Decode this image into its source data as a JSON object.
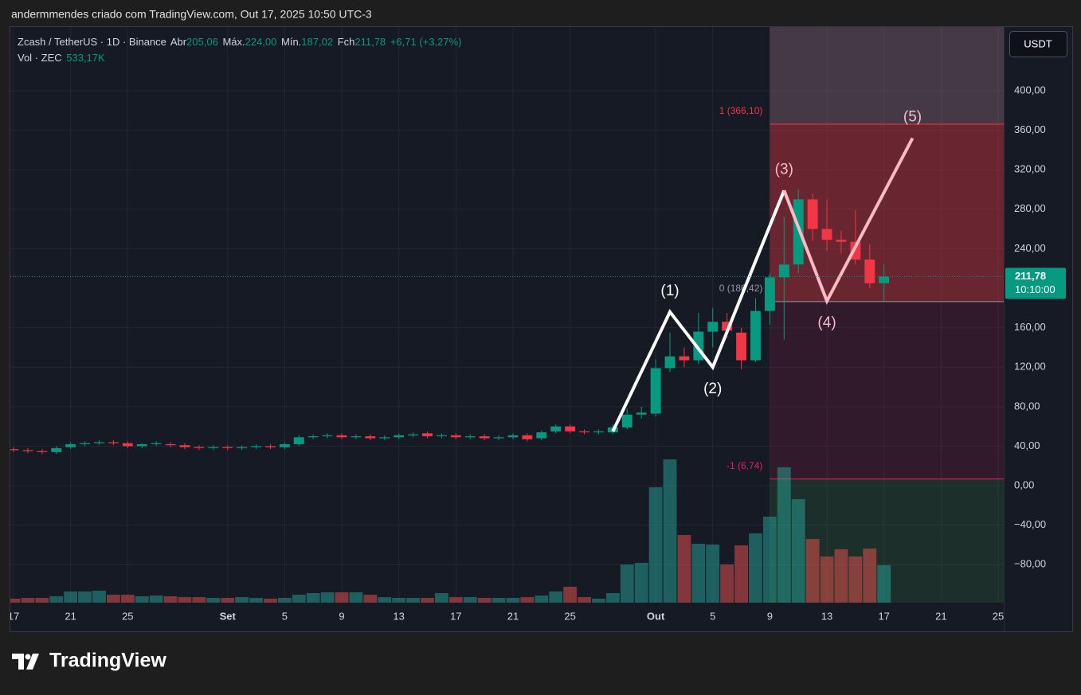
{
  "watermark": "andermmendes criado com TradingView.com, Out 17, 2025 10:50 UTC-3",
  "logo": "TradingView",
  "chart_data": {
    "type": "candlestick",
    "title": "Zcash / TetherUS · 1D · Binance",
    "legend": {
      "open_label": "Abr",
      "open": "205,06",
      "high_label": "Máx.",
      "high": "224,00",
      "low_label": "Mín.",
      "low": "187,02",
      "close_label": "Fch",
      "close": "211,78",
      "change": "+6,71 (+3,27%)",
      "volume_label": "Vol · ZEC",
      "volume": "533,17K"
    },
    "currency": "USDT",
    "x": [
      "08-17",
      "08-18",
      "08-19",
      "08-20",
      "08-21",
      "08-22",
      "08-23",
      "08-24",
      "08-25",
      "08-26",
      "08-27",
      "08-28",
      "08-29",
      "08-30",
      "08-31",
      "09-01",
      "09-02",
      "09-03",
      "09-04",
      "09-05",
      "09-06",
      "09-07",
      "09-08",
      "09-09",
      "09-10",
      "09-11",
      "09-12",
      "09-13",
      "09-14",
      "09-15",
      "09-16",
      "09-17",
      "09-18",
      "09-19",
      "09-20",
      "09-21",
      "09-22",
      "09-23",
      "09-24",
      "09-25",
      "09-26",
      "09-27",
      "09-28",
      "09-29",
      "09-30",
      "10-01",
      "10-02",
      "10-03",
      "10-04",
      "10-05",
      "10-06",
      "10-07",
      "10-08",
      "10-09",
      "10-10",
      "10-11",
      "10-12",
      "10-13",
      "10-14",
      "10-15",
      "10-16",
      "10-17"
    ],
    "open": [
      37,
      36,
      35,
      34,
      39,
      42,
      43,
      44,
      43,
      40,
      42,
      42,
      41,
      39,
      38,
      39,
      38,
      39,
      40,
      39,
      42,
      49,
      50,
      51,
      49,
      50,
      48,
      49,
      51,
      53,
      50,
      51,
      49,
      50,
      48,
      49,
      51,
      48,
      55,
      60,
      55,
      54,
      54,
      59,
      72,
      73,
      119,
      131,
      127,
      156,
      166,
      155,
      127,
      177,
      211,
      224,
      290,
      260,
      249,
      247,
      229,
      205.06
    ],
    "high": [
      39,
      38,
      37,
      40,
      44,
      45,
      46,
      46,
      45,
      43,
      45,
      44,
      43,
      41,
      41,
      41,
      41,
      42,
      42,
      44,
      51,
      52,
      53,
      53,
      52,
      52,
      51,
      53,
      54,
      55,
      53,
      53,
      52,
      52,
      51,
      53,
      53,
      56,
      62,
      62,
      57,
      57,
      62,
      78,
      80,
      128,
      155,
      140,
      175,
      180,
      175,
      160,
      190,
      215,
      272,
      300,
      296,
      290,
      258,
      279,
      245,
      224
    ],
    "low": [
      34,
      33,
      32,
      32,
      37,
      40,
      41,
      41,
      38,
      38,
      40,
      39,
      37,
      36,
      36,
      36,
      36,
      37,
      37,
      37,
      40,
      47,
      48,
      47,
      47,
      46,
      46,
      47,
      49,
      48,
      48,
      47,
      47,
      46,
      46,
      47,
      45,
      46,
      53,
      53,
      52,
      52,
      52,
      57,
      68,
      70,
      115,
      120,
      123,
      140,
      150,
      118,
      125,
      163,
      148,
      215,
      248,
      238,
      235,
      224,
      200,
      187.02
    ],
    "close": [
      36,
      35,
      34,
      38,
      42,
      43,
      44,
      43,
      40,
      42,
      43,
      41,
      39,
      38,
      39,
      38,
      39,
      40,
      39,
      42,
      49,
      50,
      51,
      49,
      50,
      48,
      49,
      51,
      52,
      50,
      51,
      49,
      50,
      48,
      49,
      51,
      47,
      54,
      60,
      55,
      54,
      55,
      59,
      72,
      74,
      119,
      131,
      127,
      156,
      166,
      157,
      127,
      177,
      211,
      224,
      290,
      260,
      249,
      247,
      229,
      205,
      211.78
    ],
    "volume": [
      57,
      68,
      68,
      91,
      159,
      159,
      170,
      113,
      113,
      91,
      102,
      91,
      79,
      79,
      68,
      68,
      79,
      68,
      57,
      68,
      113,
      136,
      147,
      147,
      147,
      113,
      79,
      68,
      68,
      68,
      136,
      79,
      79,
      68,
      68,
      68,
      79,
      102,
      159,
      227,
      79,
      57,
      136,
      544,
      567,
      1644,
      2041,
      964,
      839,
      828,
      544,
      816,
      987,
      1225,
      1928,
      1474,
      907,
      658,
      760,
      658,
      771,
      533.17
    ],
    "up_color": "#089981",
    "down_color": "#f23645",
    "volume_up_color": "rgba(38,166,154,0.5)",
    "volume_down_color": "rgba(239,83,80,0.5)",
    "grid": true,
    "ylim": [
      -118.5,
      464.5
    ],
    "yticks": [
      {
        "value": 400,
        "label": "400,00"
      },
      {
        "value": 360,
        "label": "360,00"
      },
      {
        "value": 320,
        "label": "320,00"
      },
      {
        "value": 280,
        "label": "280,00"
      },
      {
        "value": 240,
        "label": "240,00"
      },
      {
        "value": 160,
        "label": "160,00"
      },
      {
        "value": 120,
        "label": "120,00"
      },
      {
        "value": 80,
        "label": "80,00"
      },
      {
        "value": 40,
        "label": "40,00"
      },
      {
        "value": 0,
        "label": "0,00"
      },
      {
        "value": -40,
        "label": "−40,00"
      },
      {
        "value": -80,
        "label": "−80,00"
      }
    ],
    "xlim": [
      "08-17",
      "10-25"
    ],
    "xticks": [
      {
        "value": "08-17",
        "label": "17"
      },
      {
        "value": "08-21",
        "label": "21"
      },
      {
        "value": "08-25",
        "label": "25"
      },
      {
        "value": "09-01",
        "label": "Set"
      },
      {
        "value": "09-05",
        "label": "5"
      },
      {
        "value": "09-09",
        "label": "9"
      },
      {
        "value": "09-13",
        "label": "13"
      },
      {
        "value": "09-17",
        "label": "17"
      },
      {
        "value": "09-21",
        "label": "21"
      },
      {
        "value": "09-25",
        "label": "25"
      },
      {
        "value": "10-01",
        "label": "Out"
      },
      {
        "value": "10-05",
        "label": "5"
      },
      {
        "value": "10-09",
        "label": "9"
      },
      {
        "value": "10-13",
        "label": "13"
      },
      {
        "value": "10-17",
        "label": "17"
      },
      {
        "value": "10-21",
        "label": "21"
      },
      {
        "value": "10-25",
        "label": "25"
      }
    ],
    "last_price": {
      "value": 211.78,
      "label": "211,78",
      "countdown": "10:10:00",
      "color": "#089981"
    },
    "position": {
      "start": "10-09",
      "levels": [
        {
          "value": 366.1,
          "label": "1 (366,10)",
          "color": "#f23645"
        },
        {
          "value": 186.42,
          "label": "0 (186,42)",
          "color": "#9598a1"
        },
        {
          "value": 6.74,
          "label": "-1 (6,74)",
          "color": "#e91e63"
        }
      ],
      "fills": [
        "rgba(190,140,150,0.28)",
        "rgba(242,54,69,0.38)",
        "rgba(200,30,90,0.16)",
        "rgba(76,175,80,0.14)"
      ]
    },
    "wave": [
      {
        "color": "#ffffff",
        "x": [
          "09-28",
          "10-02",
          "10-05",
          "10-10"
        ],
        "values": [
          55,
          176,
          120,
          299
        ],
        "labels": [
          null,
          "(1)",
          "(2)",
          null
        ]
      },
      {
        "color": "#f8bbc4",
        "x": [
          "10-10",
          "10-13",
          "10-19"
        ],
        "values": [
          299,
          187,
          352
        ],
        "labels": [
          "(3)",
          "(4)",
          "(5)"
        ]
      }
    ]
  }
}
